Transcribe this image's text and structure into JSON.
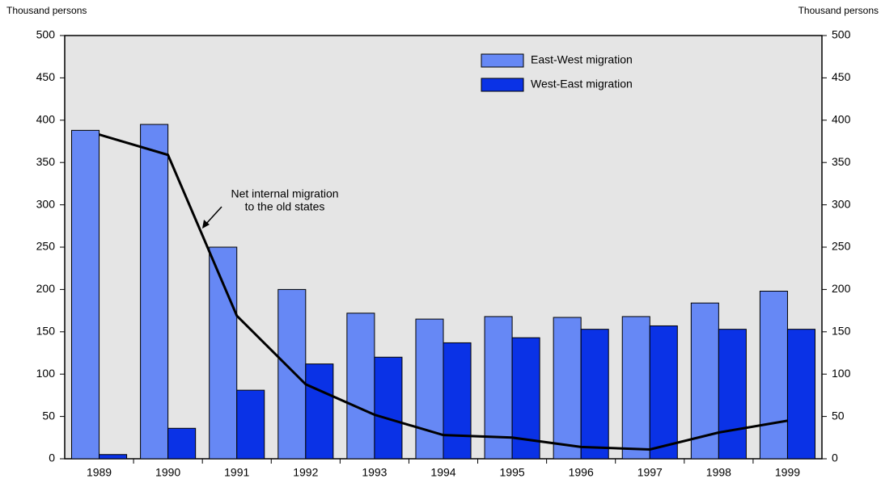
{
  "chart_data": {
    "type": "bar",
    "ylabel": "Thousand persons",
    "y2label": "Thousand persons",
    "annotation": [
      "Net internal migration",
      "to the old states"
    ],
    "categories": [
      "1989",
      "1990",
      "1991",
      "1992",
      "1993",
      "1994",
      "1995",
      "1996",
      "1997",
      "1998",
      "1999"
    ],
    "series": [
      {
        "name": "East-West migration",
        "color": "#6688f5",
        "values": [
          388,
          395,
          250,
          200,
          172,
          165,
          168,
          167,
          168,
          184,
          198
        ]
      },
      {
        "name": "West-East migration",
        "color": "#0a32e6",
        "values": [
          5,
          36,
          81,
          112,
          120,
          137,
          143,
          153,
          157,
          153,
          153
        ]
      },
      {
        "type": "line",
        "color": "#000000",
        "values": [
          383,
          359,
          169,
          88,
          52,
          28,
          25,
          14,
          11,
          31,
          45
        ]
      }
    ],
    "ylim": [
      0,
      500
    ],
    "yticks": [
      0,
      50,
      100,
      150,
      200,
      250,
      300,
      350,
      400,
      450,
      500
    ],
    "y2lim": [
      0,
      500
    ],
    "y2ticks": [
      0,
      50,
      100,
      150,
      200,
      250,
      300,
      350,
      400,
      450,
      500
    ],
    "legend": "upper right",
    "background": "#e5e5e5"
  }
}
